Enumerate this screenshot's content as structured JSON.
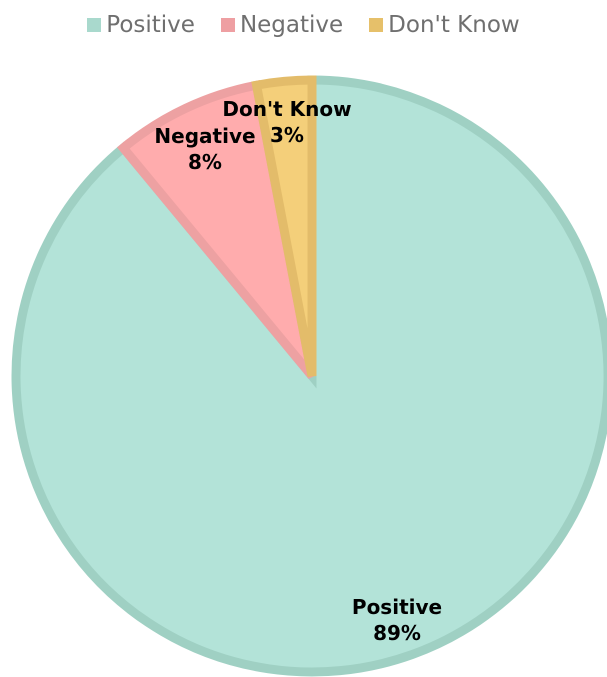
{
  "chart_data": {
    "type": "pie",
    "categories": [
      "Positive",
      "Negative",
      "Don't Know"
    ],
    "values": [
      89,
      8,
      3
    ],
    "labels": [
      "89%",
      "8%",
      "3%"
    ],
    "legend": {
      "position": "top"
    },
    "colors": {
      "fill": [
        "#b3e3d8",
        "#ffacad",
        "#f4cf7a"
      ],
      "stroke": [
        "#9fd0c3",
        "#eda1a2",
        "#e3bc6a"
      ]
    }
  }
}
